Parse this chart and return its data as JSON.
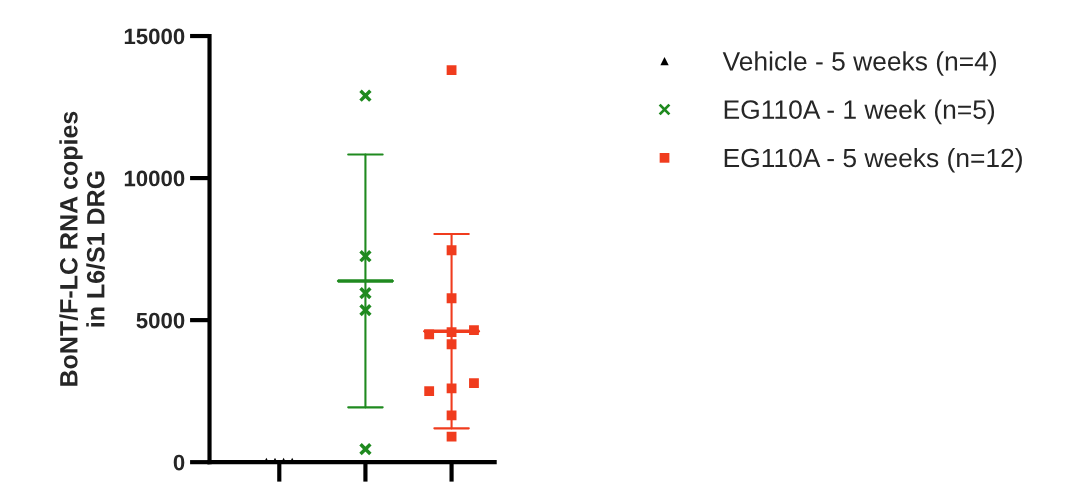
{
  "chart_data": {
    "type": "scatter",
    "ylabel": "BoNT/F-LC RNA copies\nin L6/S1 DRG",
    "categories": [
      null,
      null,
      null
    ],
    "ylim": [
      0,
      15000
    ],
    "yticks": [
      0,
      5000,
      10000,
      15000
    ],
    "grid": false,
    "legend": "top right",
    "series": [
      {
        "name": "Vehicle - 5 weeks (n=4)",
        "marker": "triangle",
        "color": "#000000",
        "values": [
          0,
          null,
          null
        ]
      },
      {
        "marker": "triangle",
        "color": "#000000",
        "values": [
          0,
          null,
          null
        ]
      },
      {
        "marker": "triangle",
        "color": "#000000",
        "values": [
          0,
          null,
          null
        ]
      },
      {
        "marker": "triangle",
        "color": "#000000",
        "values": [
          0,
          null,
          null
        ]
      },
      {
        "name": "EG110A - 1 week (n=5)",
        "marker": "cross",
        "color": "#1f8a1f",
        "values": [
          null,
          12900,
          null
        ]
      },
      {
        "marker": "cross",
        "color": "#1f8a1f",
        "values": [
          null,
          7250,
          null
        ]
      },
      {
        "marker": "cross",
        "color": "#1f8a1f",
        "values": [
          null,
          5950,
          null
        ]
      },
      {
        "marker": "cross",
        "color": "#1f8a1f",
        "values": [
          null,
          5350,
          null
        ]
      },
      {
        "marker": "cross",
        "color": "#1f8a1f",
        "values": [
          null,
          460,
          null
        ]
      },
      {
        "name": "EG110A - 5 weeks (n=12)",
        "marker": "square",
        "color": "#f03c1e",
        "values": [
          null,
          null,
          13800
        ]
      },
      {
        "marker": "square",
        "color": "#f03c1e",
        "values": [
          null,
          null,
          7460
        ]
      },
      {
        "marker": "square",
        "color": "#f03c1e",
        "values": [
          null,
          null,
          5770
        ]
      },
      {
        "marker": "square",
        "color": "#f03c1e",
        "values": [
          null,
          null,
          4650
        ]
      },
      {
        "marker": "square",
        "color": "#f03c1e",
        "values": [
          null,
          null,
          4150
        ]
      },
      {
        "marker": "square",
        "color": "#f03c1e",
        "values": [
          null,
          null,
          4580
        ]
      },
      {
        "marker": "square",
        "color": "#f03c1e",
        "values": [
          null,
          null,
          4500
        ]
      },
      {
        "marker": "square",
        "color": "#f03c1e",
        "values": [
          null,
          null,
          2780
        ]
      },
      {
        "marker": "square",
        "color": "#f03c1e",
        "values": [
          null,
          null,
          2600
        ]
      },
      {
        "marker": "square",
        "color": "#f03c1e",
        "values": [
          null,
          null,
          2500
        ]
      },
      {
        "marker": "square",
        "color": "#f03c1e",
        "values": [
          null,
          null,
          1650
        ]
      },
      {
        "marker": "square",
        "color": "#f03c1e",
        "values": [
          null,
          null,
          900
        ]
      },
      {
        "type": "box",
        "colors": [
          "#000000",
          "#1f8a1f",
          "#f03c1e"
        ],
        "boxes": [
          null,
          {
            "low": 1930,
            "q1": 6380,
            "median": 6380,
            "q3": 6380,
            "high": 10830
          },
          {
            "low": 1190,
            "q1": 4610,
            "median": 4610,
            "q3": 4610,
            "high": 8030
          }
        ]
      }
    ]
  }
}
